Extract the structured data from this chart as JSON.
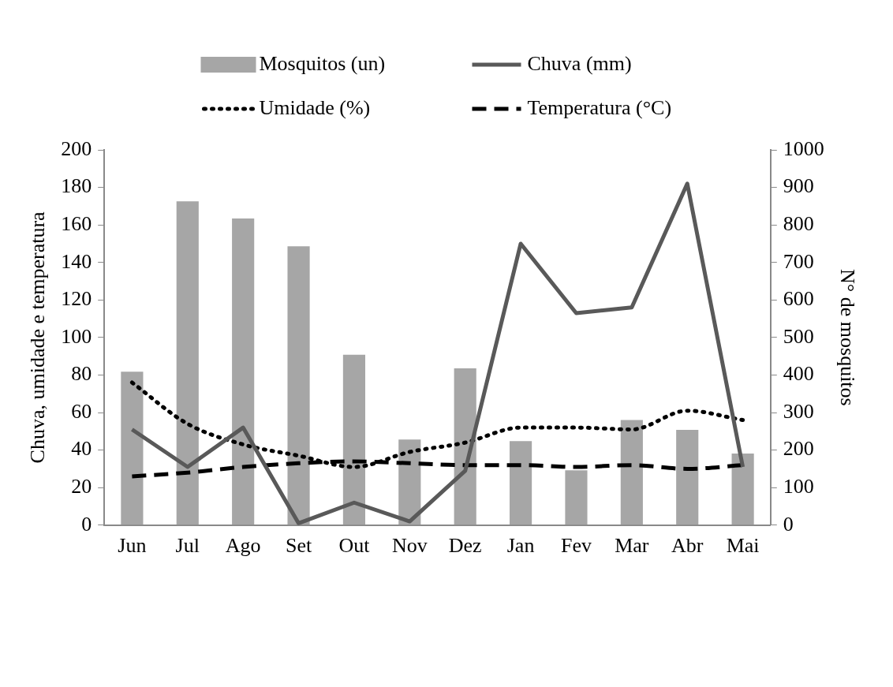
{
  "chart_data": {
    "type": "bar",
    "categories": [
      "Jun",
      "Jul",
      "Ago",
      "Set",
      "Out",
      "Nov",
      "Dez",
      "Jan",
      "Fev",
      "Mar",
      "Abr",
      "Mai"
    ],
    "ylabel": "Chuva, umidade e temperatura",
    "y2label": "N° de mosquitos",
    "series": [
      {
        "name": "Mosquitos (un)",
        "axis": "y2",
        "color": "#a6a6a6",
        "values": [
          409,
          863,
          817,
          743,
          454,
          228,
          418,
          224,
          146,
          280,
          254,
          191
        ]
      },
      {
        "name": "Chuva (mm)",
        "type": "line",
        "color": "#595959",
        "line_style": "solid",
        "values": [
          51,
          31,
          52,
          1,
          12,
          2,
          29,
          150,
          113,
          116,
          182,
          31
        ]
      },
      {
        "name": "Umidade (%)",
        "type": "line",
        "color": "#000000",
        "line_style": "dotted",
        "values": [
          76,
          54,
          43,
          37,
          31,
          39,
          44,
          52,
          52,
          51,
          61,
          56
        ]
      },
      {
        "name": "Temperatura (°C)",
        "type": "line",
        "color": "#000000",
        "line_style": "dashed",
        "values": [
          26,
          28,
          31,
          33,
          34,
          33,
          32,
          32,
          31,
          32,
          30,
          32
        ]
      }
    ],
    "ylim": [
      0,
      200
    ],
    "yticks": [
      0,
      20,
      40,
      60,
      80,
      100,
      120,
      140,
      160,
      180,
      200
    ],
    "y2lim": [
      0,
      1000
    ],
    "y2ticks": [
      0,
      100,
      200,
      300,
      400,
      500,
      600,
      700,
      800,
      900,
      1000
    ],
    "grid": false,
    "legend": "top",
    "marker": "none"
  }
}
